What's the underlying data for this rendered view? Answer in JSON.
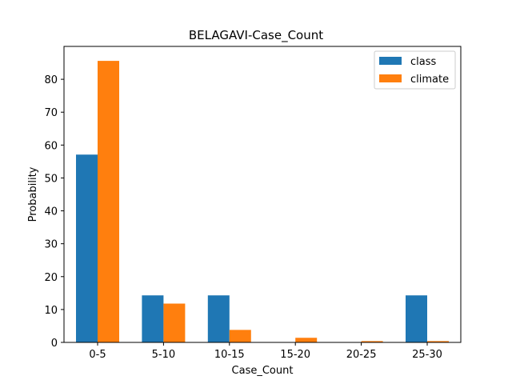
{
  "chart_data": {
    "type": "bar",
    "title": "BELAGAVI-Case_Count",
    "xlabel": "Case_Count",
    "ylabel": "Probability",
    "categories": [
      "0-5",
      "5-10",
      "10-15",
      "15-20",
      "20-25",
      "25-30"
    ],
    "series": [
      {
        "name": "class",
        "color": "#1f77b4",
        "values": [
          57.1,
          14.3,
          14.3,
          0,
          0,
          14.3
        ]
      },
      {
        "name": "climate",
        "color": "#ff7f0e",
        "values": [
          85.6,
          11.8,
          3.8,
          1.4,
          0.4,
          0.4
        ]
      }
    ],
    "ylim": [
      0,
      90
    ],
    "yticks": [
      0,
      10,
      20,
      30,
      40,
      50,
      60,
      70,
      80
    ],
    "grid": false,
    "legend_position": "top-right"
  }
}
